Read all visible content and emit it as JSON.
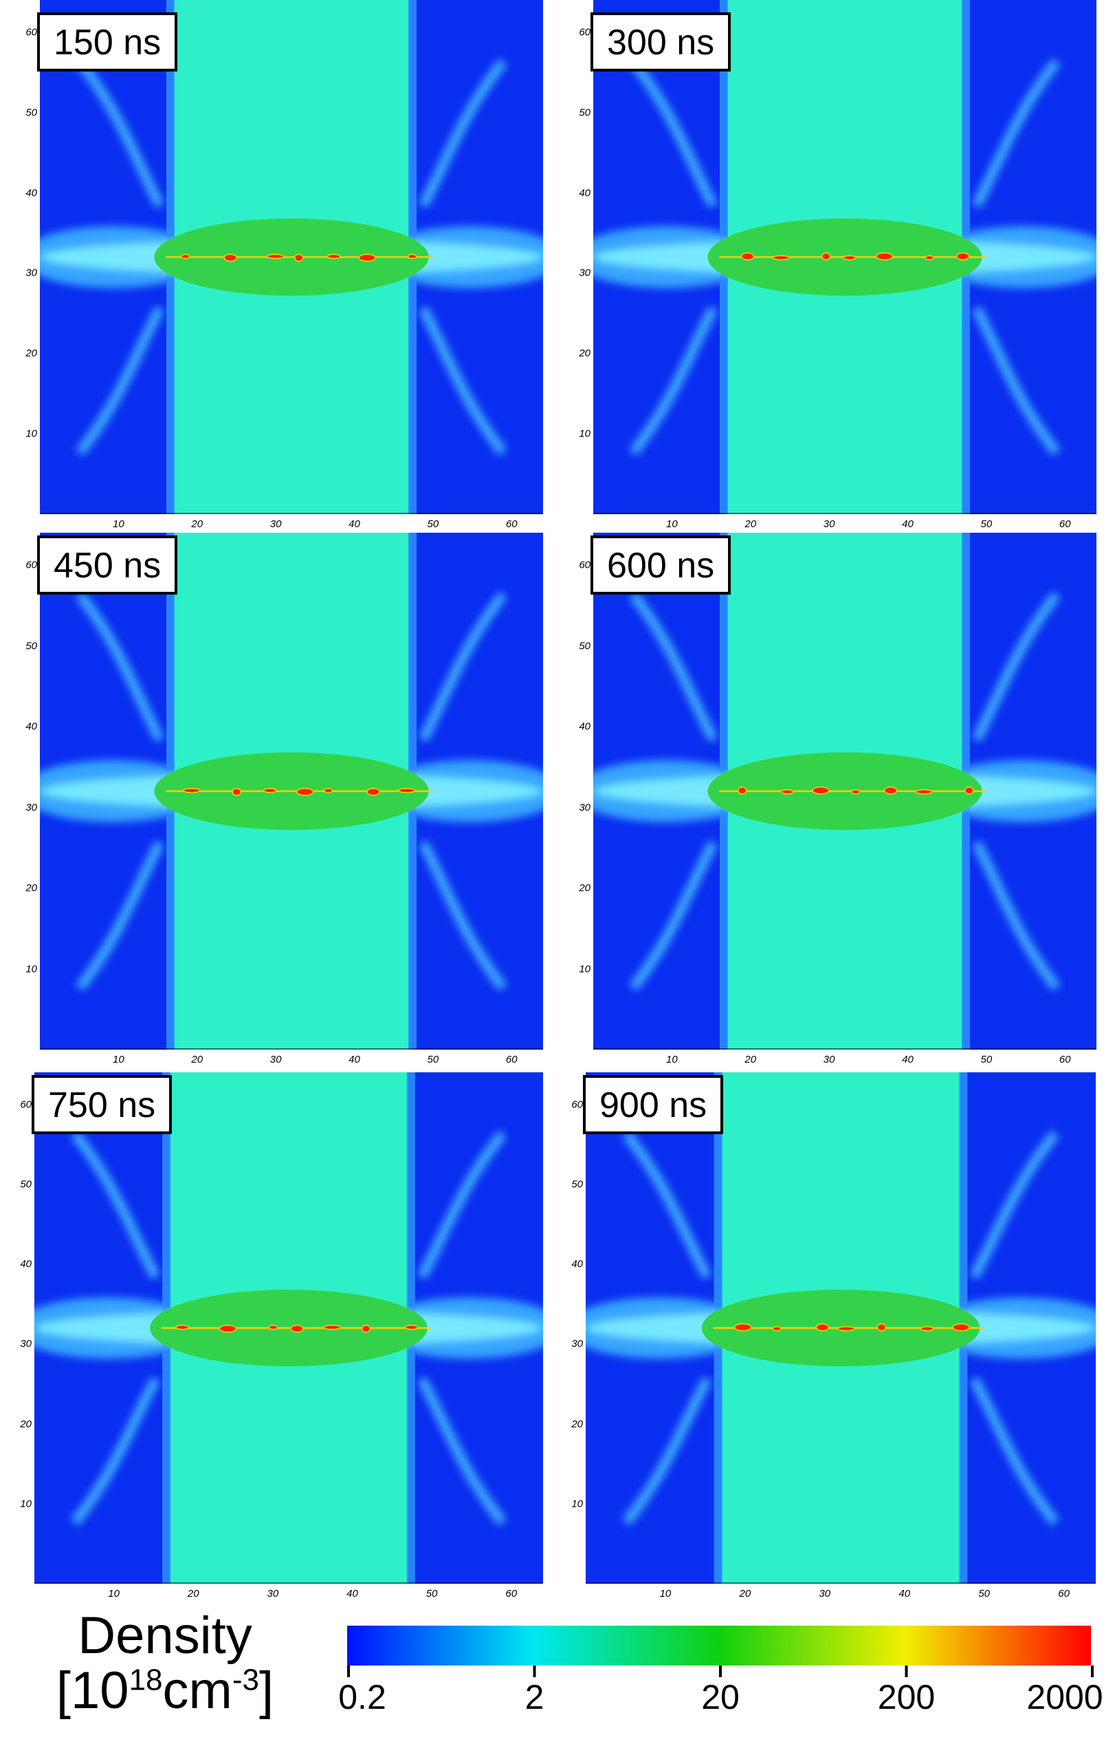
{
  "panels": [
    {
      "time": "150 ns"
    },
    {
      "time": "300 ns"
    },
    {
      "time": "450 ns"
    },
    {
      "time": "600 ns"
    },
    {
      "time": "750 ns"
    },
    {
      "time": "900 ns"
    }
  ],
  "axis_ticks": [
    "10",
    "20",
    "30",
    "40",
    "50",
    "60"
  ],
  "colorbar": {
    "title_line1": "Density",
    "title_line2_prefix": "[10",
    "title_line2_sup1": "18",
    "title_line2_mid": "cm",
    "title_line2_sup2": "-3",
    "title_line2_suffix": "]",
    "tick_labels": [
      "0.2",
      "2",
      "20",
      "200",
      "2000"
    ],
    "colors": [
      "#0010ff",
      "#00e8f0",
      "#10d010",
      "#f0f000",
      "#ff0000"
    ]
  },
  "field_colors": {
    "background_blue": "#0a2ef0",
    "cyan_slab": "#2ef0c8",
    "green_core": "#33d24a",
    "dense_red": "#ff2200"
  }
}
